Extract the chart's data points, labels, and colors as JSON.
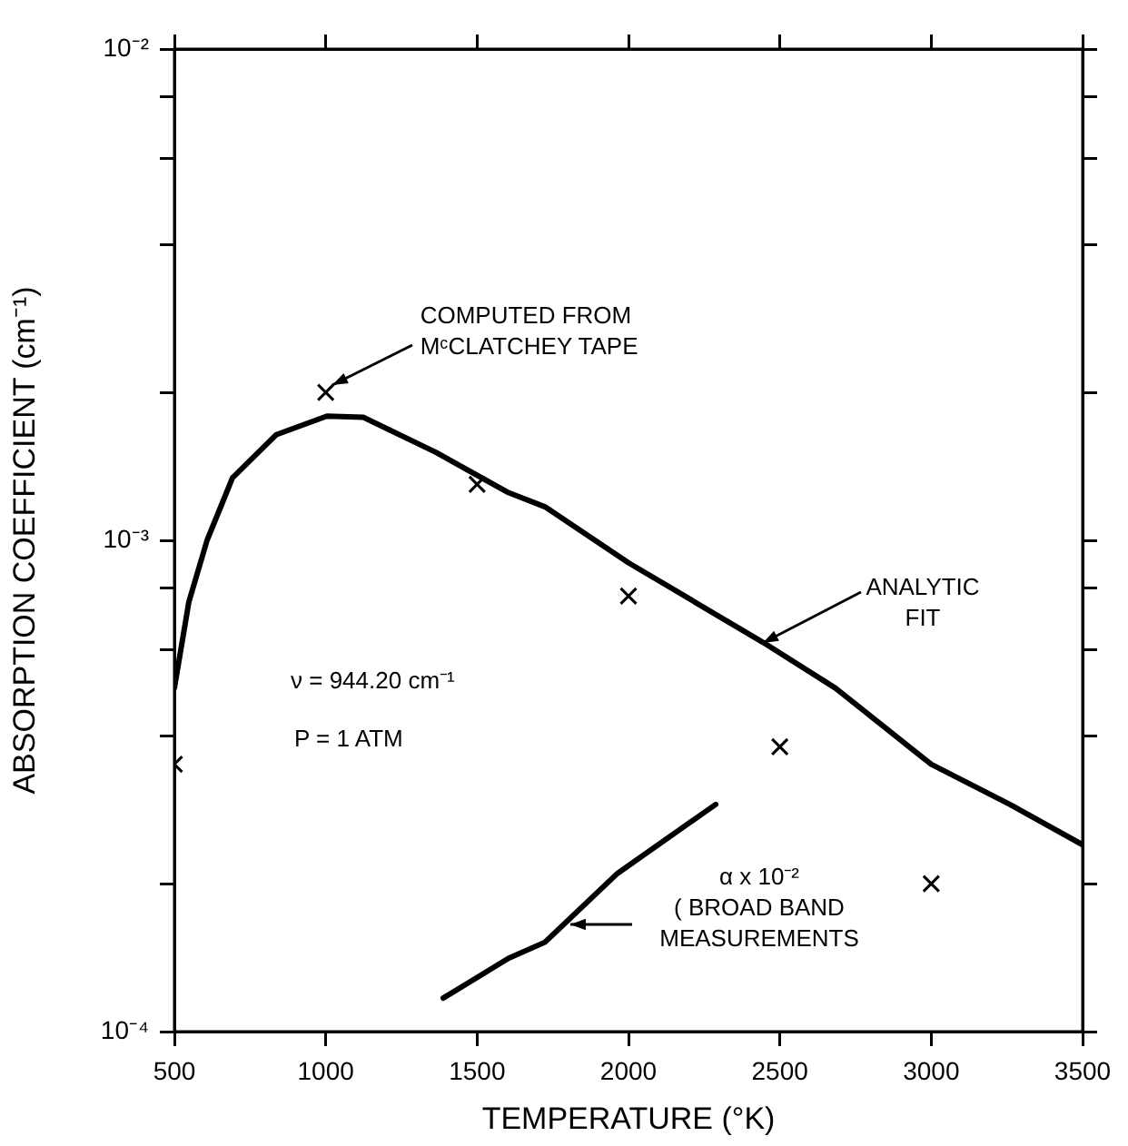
{
  "chart_data": {
    "type": "line",
    "xlabel": "TEMPERATURE (°K)",
    "ylabel": "ABSORPTION COEFFICIENT (cm⁻¹)",
    "log": "y",
    "grid": false,
    "xlim": [
      500,
      3500
    ],
    "xticks": [
      500,
      1000,
      1500,
      2000,
      2500,
      3000,
      3500
    ],
    "ylim": [
      0.0001,
      0.01
    ],
    "yticks": [
      {
        "value": 0.0001,
        "label": "10⁻⁴"
      },
      {
        "value": 0.0002,
        "label": null
      },
      {
        "value": 0.0004,
        "label": null
      },
      {
        "value": 0.0006,
        "label": null
      },
      {
        "value": 0.0008,
        "label": null
      },
      {
        "value": 0.001,
        "label": "10⁻³"
      },
      {
        "value": 0.002,
        "label": null
      },
      {
        "value": 0.004,
        "label": null
      },
      {
        "value": 0.006,
        "label": null
      },
      {
        "value": 0.008,
        "label": null
      },
      {
        "value": 0.01,
        "label": "10⁻²"
      }
    ],
    "series": [
      {
        "color": "#000000",
        "x": [
          500,
          548,
          608,
          692,
          836,
          1004,
          1124,
          1364,
          1604,
          1724,
          2000,
          2444,
          2684,
          3000,
          3260,
          3500
        ],
        "values": [
          0.0005,
          0.00075,
          0.001,
          0.00134,
          0.00164,
          0.00179,
          0.00178,
          0.00151,
          0.00125,
          0.00117,
          0.0009,
          0.00062,
          0.0005,
          0.00035,
          0.00029,
          0.00024
        ]
      },
      {
        "color": "#000000",
        "x": [
          1388,
          1604,
          1724,
          1964,
          2288
        ],
        "values": [
          0.000117,
          0.000141,
          0.000152,
          0.00021,
          0.00029
        ]
      },
      {
        "type": "scatter",
        "color": "#000000",
        "marker": "cross",
        "x": [
          500,
          1000,
          1500,
          2000,
          2500,
          3000
        ],
        "values": [
          0.00035,
          0.002,
          0.0013,
          0.00077,
          0.00038,
          0.0002
        ]
      }
    ],
    "annotations": [
      {
        "text": "COMPUTED FROM\nMᶜCLATCHEY TAPE",
        "x": 1000,
        "y": 0.002
      },
      {
        "text": "ANALYTIC\nFIT",
        "x": 2444,
        "y": 0.00062
      },
      "ν = 944.20 cm⁻¹",
      "P = 1 ATM",
      {
        "text": "α x 10⁻²\n( BROAD BAND\nMEASUREMENTS",
        "x": 1808,
        "y": 0.000165
      }
    ]
  }
}
